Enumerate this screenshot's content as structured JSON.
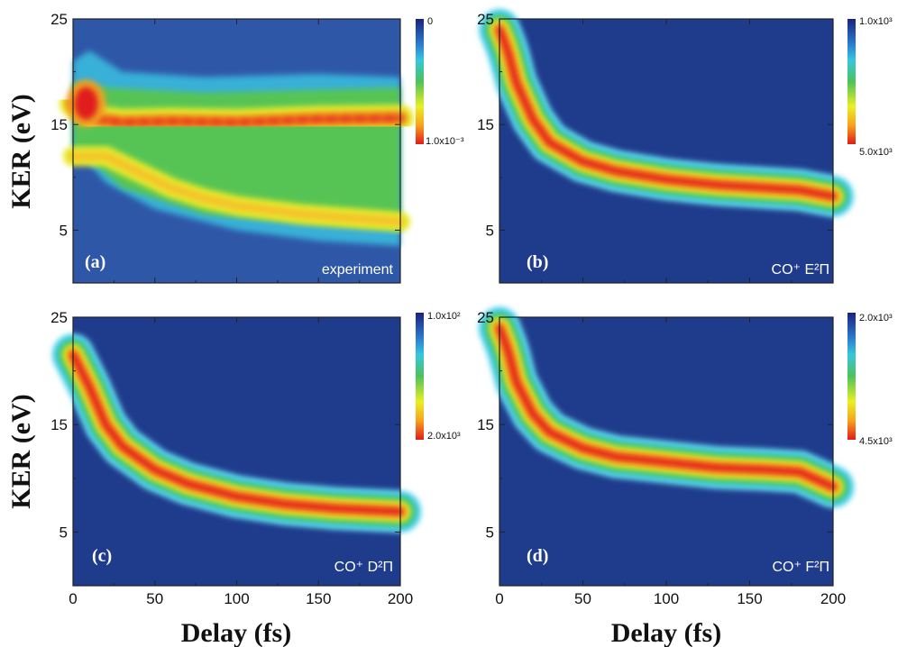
{
  "chart_data": [
    {
      "type": "heatmap",
      "panel_label": "(a)",
      "annotation": "experiment",
      "xlim": [
        0,
        200
      ],
      "ylim": [
        0,
        25
      ],
      "xticks": [
        0,
        50,
        100,
        150,
        200
      ],
      "yticks": [
        5,
        15,
        25
      ],
      "show_xticklabels": false,
      "colorbar": {
        "top_label": "0",
        "bottom_label": "1.0x10⁻³"
      },
      "features": [
        {
          "name": "ridge",
          "x": [
            0,
            5,
            15,
            30,
            60,
            100,
            150,
            200
          ],
          "y": [
            17,
            16.8,
            15.5,
            15.2,
            15.3,
            15.2,
            15.5,
            15.6
          ],
          "intensity": 0.82
        },
        {
          "name": "blob",
          "x": [
            8
          ],
          "y": [
            17
          ],
          "intensity": 0.97
        },
        {
          "name": "descending",
          "x": [
            20,
            40,
            60,
            80,
            100,
            140,
            200
          ],
          "y": [
            12,
            10.5,
            9,
            8,
            7.3,
            6.5,
            5.8
          ],
          "intensity": 0.55
        }
      ]
    },
    {
      "type": "heatmap",
      "panel_label": "(b)",
      "annotation": "CO⁺ E²Π",
      "xlim": [
        0,
        200
      ],
      "ylim": [
        0,
        25
      ],
      "xticks": [
        0,
        50,
        100,
        150,
        200
      ],
      "yticks": [
        5,
        15,
        25
      ],
      "show_xticklabels": false,
      "colorbar": {
        "top_label": "1.0x10³",
        "bottom_label": "5.0x10³"
      },
      "band": {
        "x": [
          0,
          5,
          10,
          20,
          30,
          50,
          70,
          100,
          130,
          160,
          180,
          200
        ],
        "y": [
          24,
          22,
          19,
          15.5,
          13.3,
          11.5,
          10.6,
          9.8,
          9.3,
          9,
          8.8,
          8.2
        ]
      }
    },
    {
      "type": "heatmap",
      "panel_label": "(c)",
      "annotation": "CO⁺ D²Π",
      "xlim": [
        0,
        200
      ],
      "ylim": [
        0,
        25
      ],
      "xticks": [
        0,
        50,
        100,
        150,
        200
      ],
      "yticks": [
        5,
        15,
        25
      ],
      "show_xticklabels": true,
      "colorbar": {
        "top_label": "1.0x10²",
        "bottom_label": "2.0x10³"
      },
      "band": {
        "x": [
          0,
          5,
          10,
          20,
          30,
          50,
          70,
          100,
          130,
          160,
          200
        ],
        "y": [
          21.5,
          20,
          18.5,
          15,
          13,
          10.8,
          9.5,
          8.3,
          7.6,
          7.2,
          6.9
        ]
      }
    },
    {
      "type": "heatmap",
      "panel_label": "(d)",
      "annotation": "CO⁺ F²Π",
      "xlim": [
        0,
        200
      ],
      "ylim": [
        0,
        25
      ],
      "xticks": [
        0,
        50,
        100,
        150,
        200
      ],
      "yticks": [
        5,
        15,
        25
      ],
      "show_xticklabels": true,
      "colorbar": {
        "top_label": "2.0x10³",
        "bottom_label": "4.5x10³"
      },
      "band": {
        "x": [
          0,
          5,
          10,
          20,
          30,
          50,
          70,
          100,
          130,
          160,
          180,
          200
        ],
        "y": [
          24,
          22,
          19,
          16,
          14.3,
          12.8,
          12,
          11.5,
          11,
          10.8,
          10.6,
          9.2
        ]
      }
    }
  ],
  "ylabel": "KER (eV)",
  "xlabel": "Delay (fs)"
}
